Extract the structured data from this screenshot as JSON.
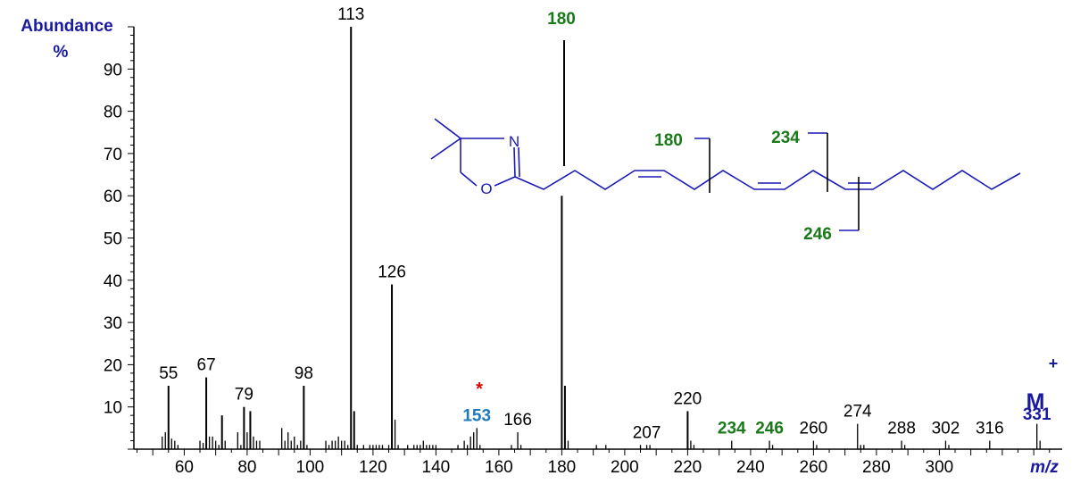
{
  "chart_data": {
    "type": "bar",
    "xlabel": "m/z",
    "ylabel_line1": "Abundance",
    "ylabel_line2": "%",
    "xlim": [
      44,
      1184
    ],
    "ylim": [
      0,
      100
    ],
    "x_ticks": [
      60,
      80,
      100,
      120,
      140,
      160,
      180,
      200,
      220,
      240,
      260,
      280,
      300
    ],
    "y_ticks": [
      10,
      20,
      30,
      40,
      50,
      60,
      70,
      80,
      90
    ],
    "grid": false,
    "peaks": [
      {
        "mz": 53,
        "y": 3
      },
      {
        "mz": 54,
        "y": 4
      },
      {
        "mz": 55,
        "y": 15,
        "label": "55"
      },
      {
        "mz": 56,
        "y": 2.5
      },
      {
        "mz": 57,
        "y": 2
      },
      {
        "mz": 58,
        "y": 1
      },
      {
        "mz": 65,
        "y": 2
      },
      {
        "mz": 66,
        "y": 1.5
      },
      {
        "mz": 67,
        "y": 17,
        "label": "67"
      },
      {
        "mz": 68,
        "y": 3
      },
      {
        "mz": 69,
        "y": 3
      },
      {
        "mz": 70,
        "y": 2
      },
      {
        "mz": 71,
        "y": 1
      },
      {
        "mz": 72,
        "y": 8
      },
      {
        "mz": 73,
        "y": 2
      },
      {
        "mz": 77,
        "y": 4
      },
      {
        "mz": 78,
        "y": 1
      },
      {
        "mz": 79,
        "y": 10,
        "label": "79"
      },
      {
        "mz": 80,
        "y": 4
      },
      {
        "mz": 81,
        "y": 9
      },
      {
        "mz": 82,
        "y": 3
      },
      {
        "mz": 83,
        "y": 2
      },
      {
        "mz": 84,
        "y": 2
      },
      {
        "mz": 91,
        "y": 5
      },
      {
        "mz": 92,
        "y": 2
      },
      {
        "mz": 93,
        "y": 4
      },
      {
        "mz": 94,
        "y": 2
      },
      {
        "mz": 95,
        "y": 3
      },
      {
        "mz": 96,
        "y": 1
      },
      {
        "mz": 97,
        "y": 2
      },
      {
        "mz": 98,
        "y": 15,
        "label": "98"
      },
      {
        "mz": 99,
        "y": 1
      },
      {
        "mz": 105,
        "y": 2
      },
      {
        "mz": 106,
        "y": 1
      },
      {
        "mz": 107,
        "y": 2
      },
      {
        "mz": 108,
        "y": 2
      },
      {
        "mz": 109,
        "y": 3
      },
      {
        "mz": 110,
        "y": 2
      },
      {
        "mz": 111,
        "y": 2
      },
      {
        "mz": 112,
        "y": 1
      },
      {
        "mz": 113,
        "y": 100,
        "label": "113"
      },
      {
        "mz": 114,
        "y": 9
      },
      {
        "mz": 115,
        "y": 1
      },
      {
        "mz": 117,
        "y": 1
      },
      {
        "mz": 119,
        "y": 1
      },
      {
        "mz": 120,
        "y": 1
      },
      {
        "mz": 121,
        "y": 1
      },
      {
        "mz": 122,
        "y": 1
      },
      {
        "mz": 123,
        "y": 1
      },
      {
        "mz": 125,
        "y": 1
      },
      {
        "mz": 126,
        "y": 39,
        "label": "126"
      },
      {
        "mz": 127,
        "y": 7
      },
      {
        "mz": 128,
        "y": 1
      },
      {
        "mz": 131,
        "y": 1
      },
      {
        "mz": 133,
        "y": 1
      },
      {
        "mz": 134,
        "y": 1
      },
      {
        "mz": 135,
        "y": 1
      },
      {
        "mz": 136,
        "y": 2
      },
      {
        "mz": 137,
        "y": 1
      },
      {
        "mz": 138,
        "y": 1
      },
      {
        "mz": 139,
        "y": 1
      },
      {
        "mz": 140,
        "y": 1
      },
      {
        "mz": 147,
        "y": 1
      },
      {
        "mz": 149,
        "y": 2
      },
      {
        "mz": 150,
        "y": 1
      },
      {
        "mz": 151,
        "y": 3
      },
      {
        "mz": 152,
        "y": 4
      },
      {
        "mz": 153,
        "y": 5,
        "label": "153",
        "color": "#1e7ab8",
        "bold": true
      },
      {
        "mz": 154,
        "y": 1
      },
      {
        "mz": 164,
        "y": 1
      },
      {
        "mz": 166,
        "y": 4,
        "label": "166"
      },
      {
        "mz": 167,
        "y": 1
      },
      {
        "mz": 180,
        "y": 60
      },
      {
        "mz": 181,
        "y": 15
      },
      {
        "mz": 182,
        "y": 2
      },
      {
        "mz": 191,
        "y": 1
      },
      {
        "mz": 194,
        "y": 1
      },
      {
        "mz": 205,
        "y": 1
      },
      {
        "mz": 207,
        "y": 1,
        "label": "207"
      },
      {
        "mz": 208,
        "y": 1
      },
      {
        "mz": 220,
        "y": 9,
        "label": "220"
      },
      {
        "mz": 221,
        "y": 2
      },
      {
        "mz": 222,
        "y": 1
      },
      {
        "mz": 234,
        "y": 2,
        "label": "234",
        "color": "#1a7a1a",
        "bold": true
      },
      {
        "mz": 246,
        "y": 2,
        "label": "246",
        "color": "#1a7a1a",
        "bold": true
      },
      {
        "mz": 247,
        "y": 1
      },
      {
        "mz": 260,
        "y": 2,
        "label": "260"
      },
      {
        "mz": 261,
        "y": 1
      },
      {
        "mz": 274,
        "y": 6,
        "label": "274"
      },
      {
        "mz": 275,
        "y": 1
      },
      {
        "mz": 276,
        "y": 1
      },
      {
        "mz": 288,
        "y": 2,
        "label": "288"
      },
      {
        "mz": 289,
        "y": 1
      },
      {
        "mz": 302,
        "y": 2,
        "label": "302"
      },
      {
        "mz": 303,
        "y": 1
      },
      {
        "mz": 316,
        "y": 2,
        "label": "316"
      },
      {
        "mz": 331,
        "y": 6,
        "label": "331",
        "color": "#1a1aa0",
        "bold": true
      },
      {
        "mz": 332,
        "y": 2
      }
    ],
    "annotations": {
      "peak_180_label": "180",
      "asterisk": "*",
      "molecular_ion": "M",
      "molecular_ion_sup": "+",
      "fragment_labels": [
        "180",
        "234",
        "246"
      ],
      "ring_atoms": [
        "N",
        "O"
      ]
    },
    "colors": {
      "axis": "#000000",
      "peak": "#000000",
      "title_blue": "#1a1aa0",
      "green": "#1a7a1a",
      "blue153": "#1e7ab8",
      "structure": "#1a1ab4",
      "asterisk": "#e00000"
    }
  }
}
